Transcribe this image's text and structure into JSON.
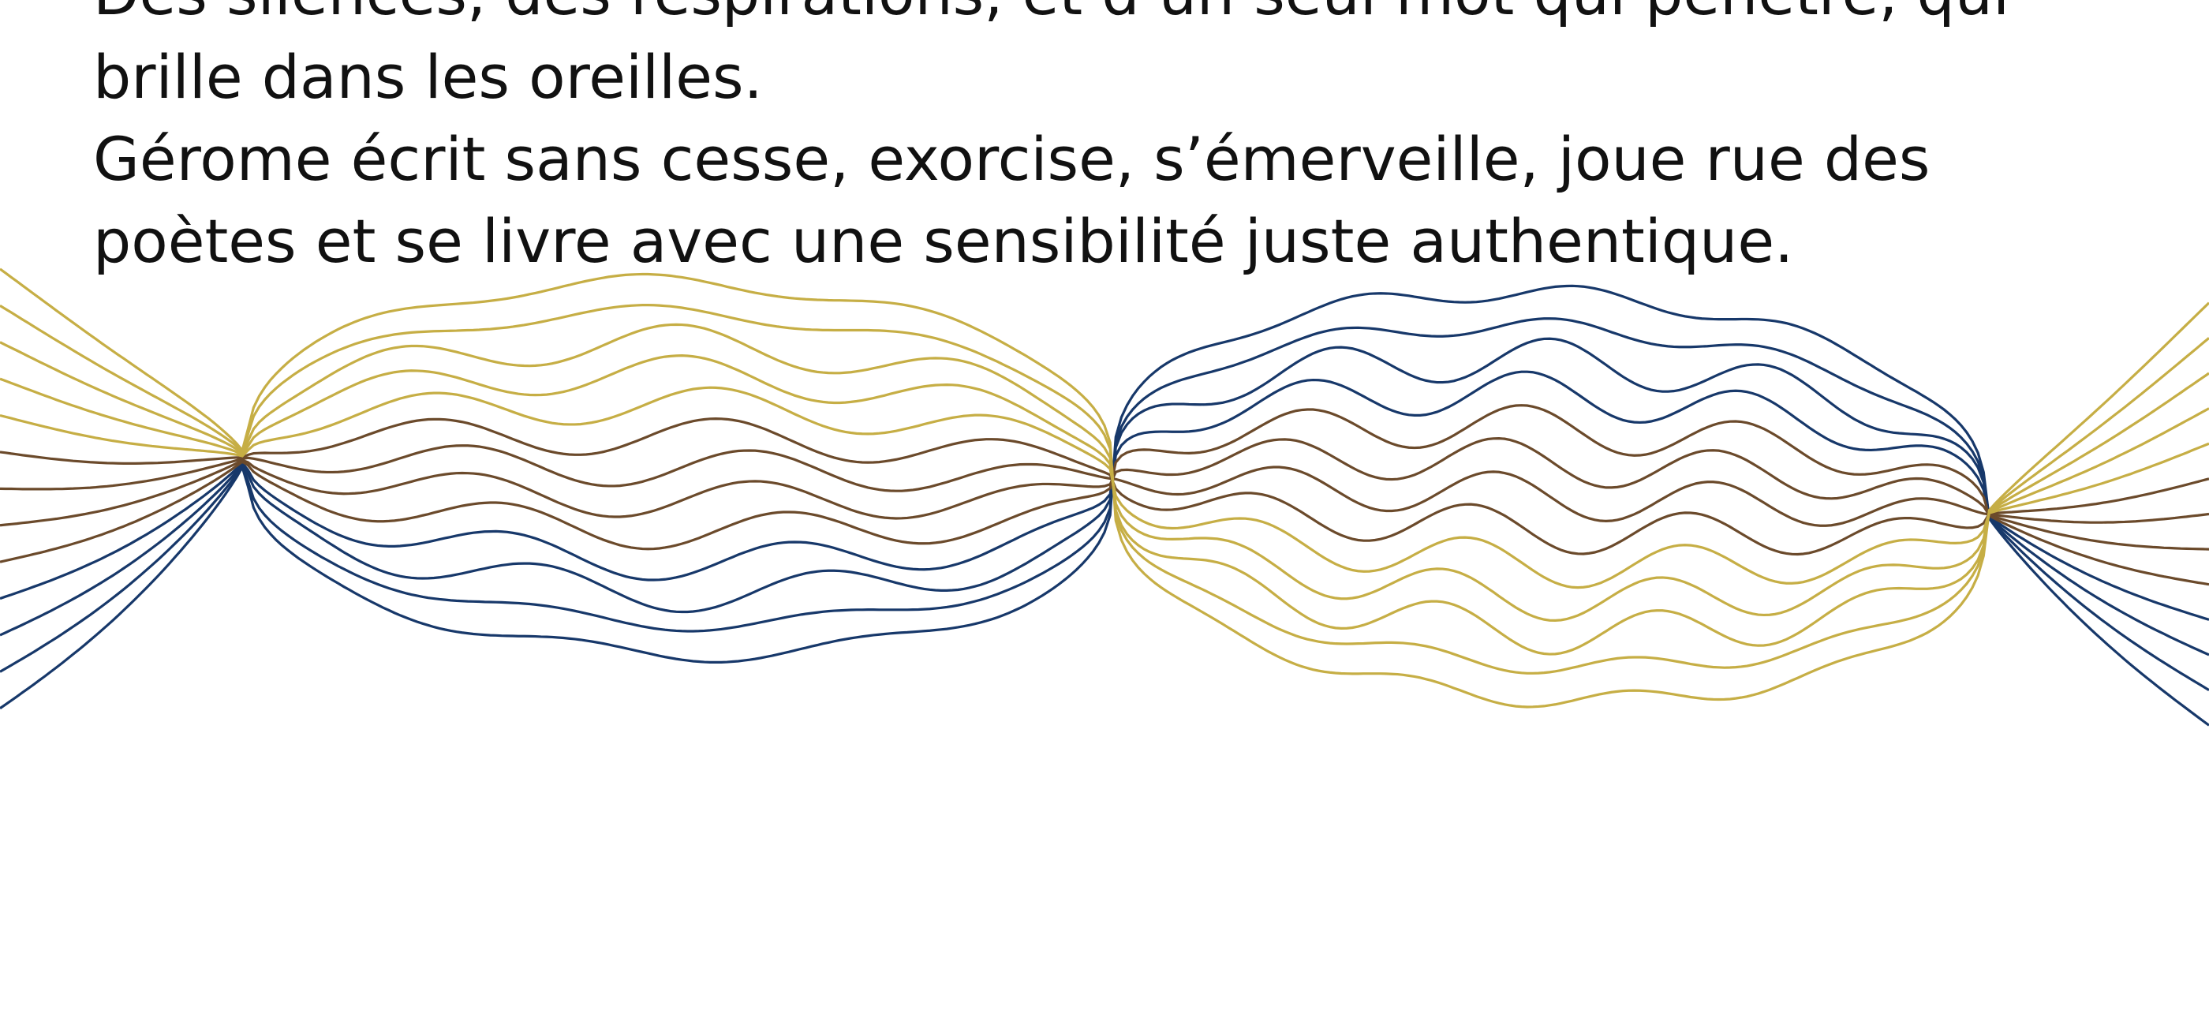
{
  "paragraphs": [
    [
      "Des silences, des respirations, et d’un seul mot qui pénètre, qui",
      "brille dans les oreilles."
    ],
    [
      "Gérome écrit sans cesse, exorcise, s’émerveille, joue rue des",
      "poètes et se livre avec une sensibilité juste authentique."
    ]
  ]
}
